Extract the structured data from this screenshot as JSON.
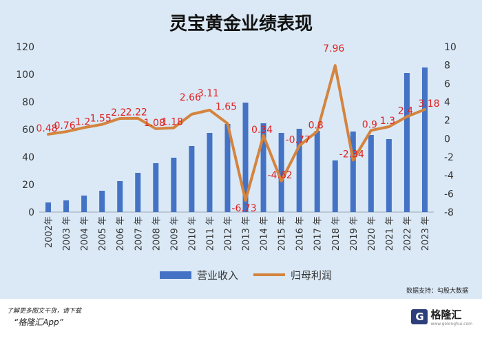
{
  "title": "灵宝黄金业绩表现",
  "legend": {
    "bar": "营业收入",
    "line": "归母利润"
  },
  "source": "数据支持：勾股大数据",
  "footer": {
    "line1": "了解更多图文干货，请下载",
    "line2": "“格隆汇App”"
  },
  "logo": {
    "name": "格隆汇",
    "mark": "G",
    "url": "www.gelonghui.com"
  },
  "colors": {
    "bar": "#4472c4",
    "line": "#d4843e",
    "label": "#e02020",
    "panel": "#dbe9f6"
  },
  "chart_data": {
    "type": "bar",
    "categories": [
      "2002年",
      "2003 年",
      "2004 年",
      "2005 年",
      "2006 年",
      "2007 年",
      "2008 年",
      "2009 年",
      "2010 年",
      "2011 年",
      "2012 年",
      "2013 年",
      "2014 年",
      "2015 年",
      "2016 年",
      "2017 年",
      "2018 年",
      "2019 年",
      "2020 年",
      "2021 年",
      "2022 年",
      "2023 年"
    ],
    "series": [
      {
        "name": "营业收入",
        "type": "bar",
        "axis": "left",
        "values": [
          7,
          8.5,
          12,
          15.5,
          22.5,
          28.5,
          35.5,
          39.5,
          48,
          57.5,
          64,
          79.5,
          64.5,
          57.5,
          60.5,
          59,
          37.5,
          58.5,
          56,
          53,
          101,
          105
        ]
      },
      {
        "name": "归母利润",
        "type": "line",
        "axis": "right",
        "values": [
          0.48,
          0.76,
          1.2,
          1.55,
          2.2,
          2.22,
          1.08,
          1.18,
          2.66,
          3.11,
          1.65,
          -6.73,
          0.34,
          -4.62,
          -0.77,
          0.8,
          7.96,
          -2.34,
          0.9,
          1.3,
          2.4,
          3.18
        ],
        "labels": [
          "0.48",
          "0.76",
          "1.2",
          "1.55",
          "2.2",
          "2.22",
          "1.08",
          "1.18",
          "2.66",
          "3.11",
          "1.65",
          "-6.73",
          "0.34",
          "-4.62",
          "-0.77",
          "0.8",
          "7.96",
          "-2.34",
          "0.9",
          "1.3",
          "2.4",
          "3.18"
        ]
      }
    ],
    "y_left": {
      "min": 0,
      "max": 120,
      "ticks": [
        "0",
        "20",
        "40",
        "60",
        "80",
        "100",
        "120"
      ]
    },
    "y_right": {
      "min": -8,
      "max": 10,
      "ticks": [
        "-8",
        "-6",
        "-4",
        "-2",
        "0",
        "2",
        "4",
        "6",
        "8",
        "10"
      ]
    },
    "grid": false,
    "legend_position": "bottom"
  }
}
